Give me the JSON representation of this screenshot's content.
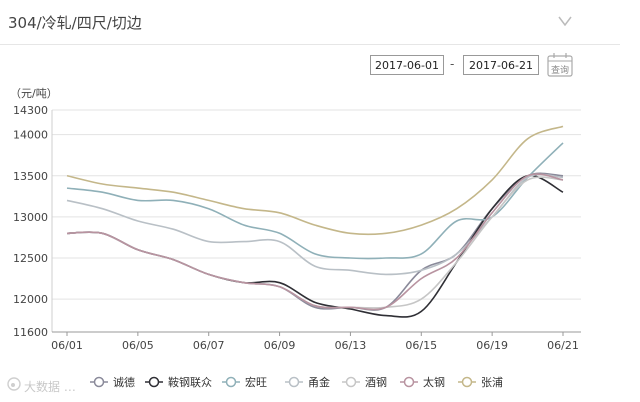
{
  "header": {
    "title": "304/冷轧/四尺/切边"
  },
  "range": {
    "start": "2017-06-01",
    "end": "2017-06-21",
    "separator": "-",
    "query_label": "查询"
  },
  "watermark": {
    "text": "大数据 …"
  },
  "chart_data": {
    "type": "line",
    "ylabel": "（元/吨）",
    "ylim": [
      11600,
      14300
    ],
    "yticks": [
      11600,
      12000,
      12500,
      13000,
      13500,
      14000,
      14300
    ],
    "xticks": [
      "06/01",
      "06/05",
      "06/07",
      "06/09",
      "06/13",
      "06/15",
      "06/19",
      "06/21"
    ],
    "grid": true,
    "legend_position": "bottom",
    "x": [
      "06/01",
      "06/02",
      "06/05",
      "06/06",
      "06/07",
      "06/08",
      "06/09",
      "06/12",
      "06/13",
      "06/14",
      "06/15",
      "06/16",
      "06/19",
      "06/20",
      "06/21"
    ],
    "series": [
      {
        "name": "诚德",
        "color": "#8a8a9a",
        "values": [
          12800,
          12800,
          12600,
          12480,
          12300,
          12200,
          12150,
          11900,
          11900,
          11900,
          12350,
          12550,
          13100,
          13500,
          13500
        ]
      },
      {
        "name": "鞍钢联众",
        "color": "#2f2f35",
        "values": [
          12800,
          12800,
          12600,
          12480,
          12300,
          12200,
          12200,
          11960,
          11880,
          11800,
          11850,
          12450,
          13100,
          13500,
          13300
        ]
      },
      {
        "name": "宏旺",
        "color": "#8fb0b8",
        "values": [
          13350,
          13300,
          13200,
          13200,
          13100,
          12900,
          12800,
          12550,
          12500,
          12500,
          12550,
          12950,
          13000,
          13480,
          13900
        ]
      },
      {
        "name": "甬金",
        "color": "#b9c0c6",
        "values": [
          13200,
          13100,
          12950,
          12850,
          12700,
          12700,
          12700,
          12400,
          12350,
          12300,
          12350,
          12550,
          13000,
          13480,
          13480
        ]
      },
      {
        "name": "酒钢",
        "color": "#c6c6c6",
        "values": [
          12800,
          12800,
          12600,
          12480,
          12300,
          12200,
          12150,
          11920,
          11900,
          11900,
          12000,
          12450,
          13000,
          13450,
          13450
        ]
      },
      {
        "name": "太钢",
        "color": "#b893a0",
        "values": [
          12800,
          12800,
          12600,
          12480,
          12300,
          12200,
          12150,
          11920,
          11900,
          11900,
          12250,
          12500,
          13050,
          13500,
          13450
        ]
      },
      {
        "name": "张浦",
        "color": "#c4b78a",
        "values": [
          13500,
          13400,
          13350,
          13300,
          13200,
          13100,
          13050,
          12900,
          12800,
          12800,
          12900,
          13100,
          13450,
          13950,
          14100
        ]
      }
    ]
  }
}
